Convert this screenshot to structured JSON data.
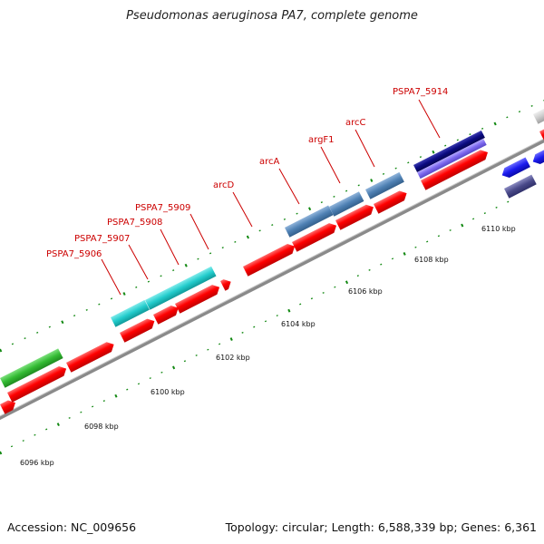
{
  "title": "Pseudomonas aeruginosa PA7, complete genome",
  "footer": {
    "accession": "Accession: NC_009656",
    "info": "Topology: circular; Length: 6,588,339 bp; Genes: 6,361"
  },
  "ruler_labels": [
    "6096 kbp",
    "6098 kbp",
    "6100 kbp",
    "6102 kbp",
    "6104 kbp",
    "6106 kbp",
    "6108 kbp",
    "6110 kbp"
  ],
  "gene_labels": [
    "PSPA7_5906",
    "PSPA7_5907",
    "PSPA7_5908",
    "PSPA7_5909",
    "arcD",
    "arcA",
    "argF1",
    "arcC",
    "PSPA7_5914"
  ],
  "colors": {
    "forward_gene": "#ff0000",
    "cyan_genes": "#22cccc",
    "arc_operon": "#4f81b4",
    "green_gene": "#33bb33",
    "navy_gene": "#0a0a80",
    "purple_gene": "#7b68ee",
    "blue_gene": "#1a1aee",
    "slate_gene": "#4a4a8a",
    "tick_green": "#118811",
    "backbone": "#888888"
  }
}
